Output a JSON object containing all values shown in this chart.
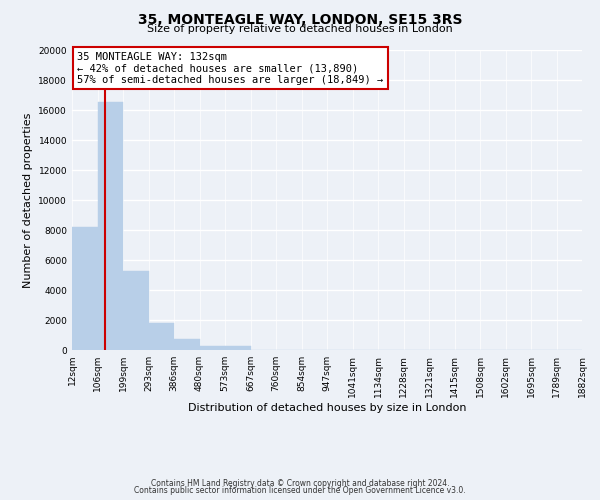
{
  "title": "35, MONTEAGLE WAY, LONDON, SE15 3RS",
  "subtitle": "Size of property relative to detached houses in London",
  "xlabel": "Distribution of detached houses by size in London",
  "ylabel": "Number of detached properties",
  "bar_heights": [
    8200,
    16500,
    5300,
    1800,
    750,
    300,
    300,
    0,
    0,
    0,
    0,
    0,
    0,
    0,
    0,
    0,
    0,
    0,
    0,
    0
  ],
  "categories": [
    "12sqm",
    "106sqm",
    "199sqm",
    "293sqm",
    "386sqm",
    "480sqm",
    "573sqm",
    "667sqm",
    "760sqm",
    "854sqm",
    "947sqm",
    "1041sqm",
    "1134sqm",
    "1228sqm",
    "1321sqm",
    "1415sqm",
    "1508sqm",
    "1602sqm",
    "1695sqm",
    "1789sqm",
    "1882sqm"
  ],
  "bar_color": "#b8cfe8",
  "bar_edge_color": "#b8cfe8",
  "red_line_color": "#cc0000",
  "property_line_label": "35 MONTEAGLE WAY: 132sqm",
  "annotation_line1": "← 42% of detached houses are smaller (13,890)",
  "annotation_line2": "57% of semi-detached houses are larger (18,849) →",
  "annotation_box_color": "#ffffff",
  "annotation_box_edge": "#cc0000",
  "ylim": [
    0,
    20000
  ],
  "yticks": [
    0,
    2000,
    4000,
    6000,
    8000,
    10000,
    12000,
    14000,
    16000,
    18000,
    20000
  ],
  "footer1": "Contains HM Land Registry data © Crown copyright and database right 2024.",
  "footer2": "Contains public sector information licensed under the Open Government Licence v3.0.",
  "bg_color": "#edf1f7",
  "plot_bg_color": "#edf1f7",
  "grid_color": "#ffffff",
  "title_fontsize": 10,
  "subtitle_fontsize": 8,
  "axis_label_fontsize": 8,
  "tick_fontsize": 6.5,
  "annotation_fontsize": 7.5,
  "footer_fontsize": 5.5
}
